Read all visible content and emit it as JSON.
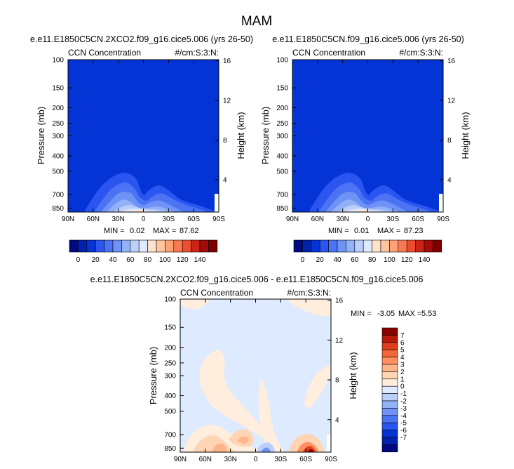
{
  "figure": {
    "title": "MAM",
    "units_prefix": "#/cm:S:3:N:"
  },
  "colors": {
    "background": "#ffffff",
    "text": "#000000",
    "scale_abs": [
      "#000a80",
      "#0022ad",
      "#0433d6",
      "#2a55f0",
      "#4b73f4",
      "#6e92f6",
      "#92b2f8",
      "#bad0fb",
      "#ddeaff",
      "#ffe2cc",
      "#ffc49d",
      "#ffa174",
      "#f97a52",
      "#ee4d2e",
      "#cc2518",
      "#a30c08",
      "#7d0000"
    ],
    "scale_diff": [
      "#000a80",
      "#0022ad",
      "#0433d6",
      "#2a55f0",
      "#4b73f4",
      "#6e92f6",
      "#92b2f8",
      "#bad0fb",
      "#ddeaff",
      "#ffeedd",
      "#ffd4b3",
      "#ffb48a",
      "#ff8f5f",
      "#f56637",
      "#de3e1b",
      "#b71a08",
      "#880000"
    ]
  },
  "chart_data": [
    {
      "type": "heatmap",
      "id": "case1",
      "title": "e.e11.E1850C5CN.2XCO2.f09_g16.cice5.006 (yrs 26-50)",
      "left_label": "CCN Concentration",
      "right_label": "#/cm:S:3:N:",
      "ylabel": "Pressure (mb)",
      "y2label": "Height (km)",
      "x_ticks": [
        "90N",
        "60N",
        "30N",
        "0",
        "30S",
        "60S",
        "90S"
      ],
      "y_ticks": [
        "100",
        "150",
        "200",
        "250",
        "300",
        "400",
        "500",
        "700",
        "850"
      ],
      "y2_ticks": [
        "16",
        "12",
        "8",
        "4"
      ],
      "min_label": "MIN =",
      "min_value": "0.02",
      "max_label": "MAX =",
      "max_value": "87.62",
      "colorbar_ticks": [
        "0",
        "20",
        "40",
        "60",
        "80",
        "100",
        "120",
        "140"
      ]
    },
    {
      "type": "heatmap",
      "id": "case2",
      "title": "e.e11.E1850C5CN.f09_g16.cice5.006 (yrs 26-50)",
      "left_label": "CCN Concentration",
      "right_label": "#/cm:S:3:N:",
      "ylabel": "Pressure (mb)",
      "y2label": "Height (km)",
      "x_ticks": [
        "90N",
        "60N",
        "30N",
        "0",
        "30S",
        "60S",
        "90S"
      ],
      "y_ticks": [
        "100",
        "150",
        "200",
        "250",
        "300",
        "400",
        "500",
        "700",
        "850"
      ],
      "y2_ticks": [
        "16",
        "12",
        "8",
        "4"
      ],
      "min_label": "MIN =",
      "min_value": "0.01",
      "max_label": "MAX =",
      "max_value": "87.23",
      "colorbar_ticks": [
        "0",
        "20",
        "40",
        "60",
        "80",
        "100",
        "120",
        "140"
      ]
    },
    {
      "type": "heatmap",
      "id": "diff",
      "title": "e.e11.E1850C5CN.2XCO2.f09_g16.cice5.006 - e.e11.E1850C5CN.f09_g16.cice5.006",
      "left_label": "CCN Concentration",
      "right_label": "#/cm:S:3:N:",
      "ylabel": "Pressure (mb)",
      "y2label": "Height (km)",
      "x_ticks": [
        "90N",
        "60N",
        "30N",
        "0",
        "30S",
        "60S",
        "90S"
      ],
      "y_ticks": [
        "100",
        "150",
        "200",
        "250",
        "300",
        "400",
        "500",
        "700",
        "850"
      ],
      "y2_ticks": [
        "16",
        "12",
        "8",
        "4"
      ],
      "min_label": "MIN =",
      "min_value": "-3.05",
      "max_label": "MAX =",
      "max_value": "5.53",
      "colorbar_ticks": [
        "7",
        "6",
        "5",
        "4",
        "3",
        "2",
        "1",
        "0",
        "-1",
        "-2",
        "-3",
        "-4",
        "-5",
        "-6",
        "-7"
      ]
    }
  ]
}
